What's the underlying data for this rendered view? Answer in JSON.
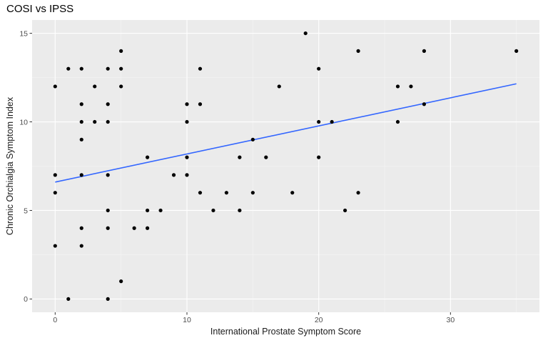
{
  "chart_data": {
    "type": "scatter",
    "title": "COSI vs IPSS",
    "xlabel": "International Prostate Symptom Score",
    "ylabel": "Chronic Orchialgia Symptom Index",
    "xlim": [
      -1.75,
      36.75
    ],
    "ylim": [
      -0.75,
      15.75
    ],
    "x_ticks": [
      0,
      10,
      20,
      30
    ],
    "y_ticks": [
      0,
      5,
      10,
      15
    ],
    "x_tick_labels": [
      "0",
      "10",
      "20",
      "30"
    ],
    "y_tick_labels": [
      "0",
      "5",
      "10",
      "15"
    ],
    "grid": true,
    "legend": "none",
    "points": [
      {
        "x": 0,
        "y": 12
      },
      {
        "x": 0,
        "y": 7
      },
      {
        "x": 0,
        "y": 6
      },
      {
        "x": 0,
        "y": 3
      },
      {
        "x": 1,
        "y": 13
      },
      {
        "x": 1,
        "y": 0
      },
      {
        "x": 2,
        "y": 13
      },
      {
        "x": 2,
        "y": 11
      },
      {
        "x": 2,
        "y": 10
      },
      {
        "x": 2,
        "y": 9
      },
      {
        "x": 2,
        "y": 7
      },
      {
        "x": 2,
        "y": 4
      },
      {
        "x": 2,
        "y": 3
      },
      {
        "x": 3,
        "y": 12
      },
      {
        "x": 3,
        "y": 10
      },
      {
        "x": 4,
        "y": 13
      },
      {
        "x": 4,
        "y": 11
      },
      {
        "x": 4,
        "y": 10
      },
      {
        "x": 4,
        "y": 7
      },
      {
        "x": 4,
        "y": 5
      },
      {
        "x": 4,
        "y": 4
      },
      {
        "x": 4,
        "y": 0
      },
      {
        "x": 5,
        "y": 14
      },
      {
        "x": 5,
        "y": 13
      },
      {
        "x": 5,
        "y": 12
      },
      {
        "x": 5,
        "y": 1
      },
      {
        "x": 6,
        "y": 4
      },
      {
        "x": 7,
        "y": 8
      },
      {
        "x": 7,
        "y": 5
      },
      {
        "x": 7,
        "y": 4
      },
      {
        "x": 8,
        "y": 5
      },
      {
        "x": 9,
        "y": 7
      },
      {
        "x": 10,
        "y": 11
      },
      {
        "x": 10,
        "y": 10
      },
      {
        "x": 10,
        "y": 8
      },
      {
        "x": 10,
        "y": 7
      },
      {
        "x": 11,
        "y": 13
      },
      {
        "x": 11,
        "y": 11
      },
      {
        "x": 11,
        "y": 6
      },
      {
        "x": 12,
        "y": 5
      },
      {
        "x": 13,
        "y": 6
      },
      {
        "x": 14,
        "y": 8
      },
      {
        "x": 14,
        "y": 5
      },
      {
        "x": 15,
        "y": 9
      },
      {
        "x": 15,
        "y": 6
      },
      {
        "x": 16,
        "y": 8
      },
      {
        "x": 17,
        "y": 12
      },
      {
        "x": 18,
        "y": 6
      },
      {
        "x": 19,
        "y": 15
      },
      {
        "x": 20,
        "y": 13
      },
      {
        "x": 20,
        "y": 10
      },
      {
        "x": 20,
        "y": 8
      },
      {
        "x": 21,
        "y": 10
      },
      {
        "x": 22,
        "y": 5
      },
      {
        "x": 23,
        "y": 14
      },
      {
        "x": 23,
        "y": 6
      },
      {
        "x": 26,
        "y": 12
      },
      {
        "x": 26,
        "y": 10
      },
      {
        "x": 27,
        "y": 12
      },
      {
        "x": 28,
        "y": 14
      },
      {
        "x": 28,
        "y": 11
      },
      {
        "x": 35,
        "y": 14
      }
    ],
    "trend_line": {
      "x": [
        0,
        35
      ],
      "y": [
        6.6,
        12.15
      ],
      "color": "#3366ff"
    },
    "colors": {
      "panel_background": "#ebebeb",
      "grid_major": "#ffffff",
      "grid_minor": "#f5f5f5",
      "point": "#000000",
      "trend": "#3366ff"
    }
  }
}
